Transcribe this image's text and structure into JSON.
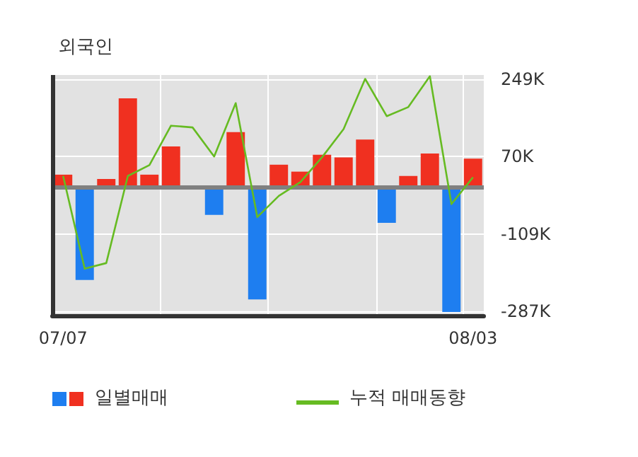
{
  "chart_data": {
    "type": "bar",
    "title": "외국인",
    "categories": [
      "07/07",
      null,
      null,
      null,
      null,
      null,
      null,
      null,
      null,
      null,
      null,
      null,
      null,
      null,
      null,
      null,
      null,
      null,
      null,
      "08/03"
    ],
    "series": [
      {
        "name": "일별매매",
        "colors": [
          "#f03020",
          "#1e7ef0",
          "#f03020",
          "#f03020",
          "#f03020",
          "#f03020",
          "#f03020",
          "#1e7ef0",
          "#f03020",
          "#1e7ef0",
          "#f03020",
          "#f03020",
          "#f03020",
          "#f03020",
          "#f03020",
          "#1e7ef0",
          "#f03020",
          "#f03020",
          "#1e7ef0",
          "#f03020"
        ],
        "values": [
          28,
          -215,
          18,
          204,
          28,
          93,
          0,
          -65,
          126,
          -260,
          51,
          35,
          74,
          68,
          109,
          -83,
          25,
          77,
          -289,
          65
        ]
      },
      {
        "name": "누적 매매동향",
        "type": "line",
        "color": "#66bb22",
        "values": [
          25,
          -189,
          -176,
          25,
          50,
          141,
          137,
          70,
          193,
          -70,
          -21,
          11,
          68,
          133,
          249,
          163,
          184,
          255,
          -40,
          22
        ]
      }
    ],
    "ylim": [
      -297,
      258
    ],
    "yticks": [
      {
        "value": 249,
        "label": "249K"
      },
      {
        "value": 70,
        "label": "70K"
      },
      {
        "value": -109,
        "label": "-109K"
      },
      {
        "value": -287,
        "label": "-287K"
      }
    ],
    "ref_lines": [
      {
        "axis": "y",
        "value": 0,
        "color": "#808080"
      }
    ],
    "grid": true,
    "legend": "bottom left",
    "marker": "none"
  }
}
